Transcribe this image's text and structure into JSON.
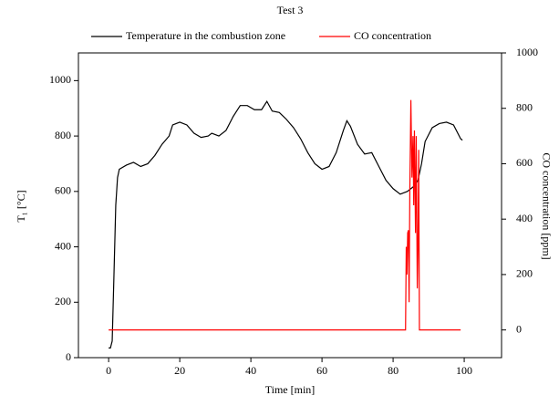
{
  "chart_data": {
    "type": "line",
    "title": "Test 3",
    "x_label": "Time [min]",
    "y_label": "T₁ [°C]",
    "y2_label": "CO concentration [ppm]",
    "xlim": [
      -8.5,
      110.5
    ],
    "xticks": [
      0,
      20,
      40,
      60,
      80,
      100
    ],
    "ylim": [
      0,
      1100
    ],
    "yticks": [
      0,
      200,
      400,
      600,
      800,
      1000
    ],
    "y2lim": [
      -100,
      1000
    ],
    "y2ticks": [
      0,
      200,
      400,
      600,
      800,
      1000
    ],
    "series": [
      {
        "name": "Temperature in the combustion zone",
        "color": "#000000",
        "x": [
          0,
          0.5,
          1,
          1.5,
          2,
          2.5,
          3,
          5,
          7,
          9,
          11,
          13,
          15,
          17,
          18,
          20,
          22,
          24,
          26,
          28,
          29,
          31,
          33,
          35,
          37,
          39,
          41,
          43,
          44.5,
          46,
          48,
          50,
          52,
          54,
          56,
          58,
          60,
          62,
          64,
          66,
          67,
          68,
          70,
          72,
          74,
          76,
          78,
          80,
          82,
          84,
          86,
          87,
          88,
          89,
          91,
          93,
          95,
          97,
          99,
          99.5
        ],
        "values": [
          35,
          35,
          60,
          300,
          550,
          650,
          680,
          695,
          705,
          690,
          700,
          730,
          770,
          800,
          840,
          850,
          840,
          810,
          795,
          800,
          810,
          800,
          820,
          870,
          910,
          910,
          895,
          895,
          925,
          890,
          885,
          860,
          830,
          790,
          740,
          700,
          680,
          690,
          740,
          820,
          855,
          835,
          770,
          735,
          740,
          690,
          640,
          610,
          590,
          600,
          620,
          640,
          700,
          780,
          830,
          845,
          850,
          840,
          790,
          785
        ]
      },
      {
        "name": "CO concentration",
        "color": "#ff0000",
        "axis": "y2",
        "x": [
          0,
          83.5,
          83.7,
          83.9,
          84.1,
          84.3,
          84.5,
          84.7,
          85,
          85.3,
          85.6,
          85.8,
          86,
          86.3,
          86.5,
          86.8,
          87,
          87.2,
          87.4,
          99
        ],
        "values": [
          0,
          0,
          300,
          200,
          350,
          360,
          100,
          500,
          830,
          550,
          700,
          450,
          720,
          350,
          700,
          150,
          300,
          650,
          0,
          0
        ]
      }
    ]
  }
}
